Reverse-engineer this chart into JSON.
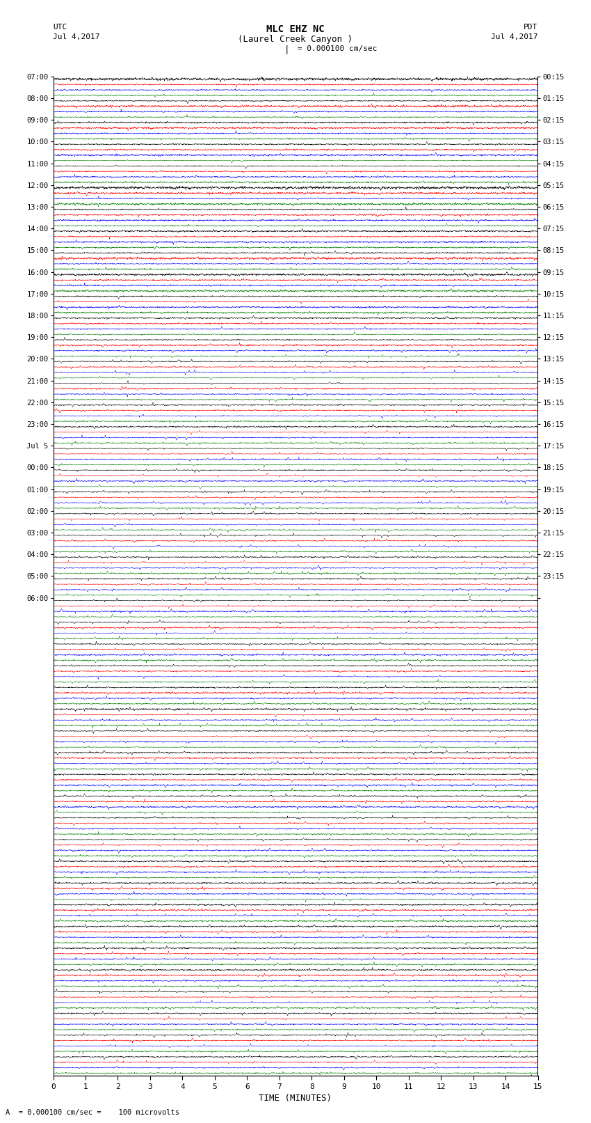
{
  "title_line1": "MLC EHZ NC",
  "title_line2": "(Laurel Creek Canyon )",
  "scale_text": "= 0.000100 cm/sec",
  "left_date": "Jul 4,2017",
  "right_date": "Jul 4,2017",
  "left_label": "UTC",
  "right_label": "PDT",
  "footer_text": "= 0.000100 cm/sec =    100 microvolts",
  "xlabel": "TIME (MINUTES)",
  "figsize": [
    8.5,
    16.13
  ],
  "dpi": 100,
  "bg_color": "white",
  "colors": [
    "black",
    "red",
    "blue",
    "green"
  ],
  "n_rows": 46,
  "n_traces_per_row": 4,
  "minutes": 15,
  "left_times_utc": [
    "07:00",
    "08:00",
    "09:00",
    "10:00",
    "11:00",
    "12:00",
    "13:00",
    "14:00",
    "15:00",
    "16:00",
    "17:00",
    "18:00",
    "19:00",
    "20:00",
    "21:00",
    "22:00",
    "23:00",
    "Jul 5",
    "00:00",
    "01:00",
    "02:00",
    "03:00",
    "04:00",
    "05:00",
    "06:00"
  ],
  "right_times_pdt": [
    "00:15",
    "01:15",
    "02:15",
    "03:15",
    "04:15",
    "05:15",
    "06:15",
    "07:15",
    "08:15",
    "09:15",
    "10:15",
    "11:15",
    "12:15",
    "13:15",
    "14:15",
    "15:15",
    "16:15",
    "17:15",
    "18:15",
    "19:15",
    "20:15",
    "21:15",
    "22:15",
    "23:15",
    ""
  ],
  "seed": 12345
}
